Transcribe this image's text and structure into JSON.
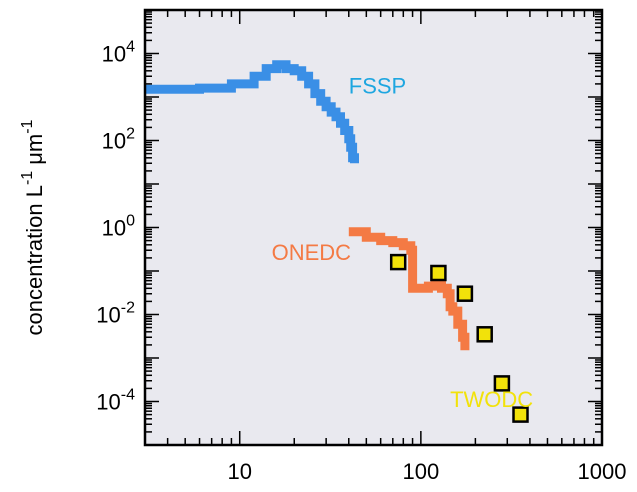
{
  "chart_data": {
    "type": "scatter",
    "title": "",
    "xlabel": "",
    "ylabel": "concentration L^-1 μm^-1",
    "ylabel_parts": {
      "main": "concentration L",
      "exp1": "-1",
      "mu": "μm",
      "exp2": "-1"
    },
    "x_scale": "log",
    "y_scale": "log",
    "xlim": [
      3,
      1000
    ],
    "ylim": [
      1e-05,
      100000
    ],
    "grid": false,
    "background": "#e9e9ef",
    "x_ticks": [
      {
        "value": 10,
        "label": "10"
      },
      {
        "value": 100,
        "label": "100"
      },
      {
        "value": 1000,
        "label": "1000"
      }
    ],
    "y_ticks": [
      {
        "value": 0.0001,
        "base": "10",
        "exp": "-4"
      },
      {
        "value": 0.01,
        "base": "10",
        "exp": "-2"
      },
      {
        "value": 1,
        "base": "10",
        "exp": "0"
      },
      {
        "value": 100,
        "base": "10",
        "exp": "2"
      },
      {
        "value": 10000,
        "base": "10",
        "exp": "4"
      }
    ],
    "series": [
      {
        "name": "FSSP",
        "color": "#3a8fe6",
        "style": "step-line",
        "points": [
          [
            3,
            1500
          ],
          [
            6,
            1600
          ],
          [
            9,
            2000
          ],
          [
            10,
            2000
          ],
          [
            12,
            3000
          ],
          [
            14,
            4500
          ],
          [
            16,
            5500
          ],
          [
            18,
            4500
          ],
          [
            20,
            4000
          ],
          [
            22,
            3000
          ],
          [
            24,
            2000
          ],
          [
            26,
            1200
          ],
          [
            28,
            800
          ],
          [
            30,
            600
          ],
          [
            32,
            450
          ],
          [
            34,
            350
          ],
          [
            36,
            250
          ],
          [
            38,
            170
          ],
          [
            40,
            110
          ],
          [
            41,
            70
          ],
          [
            42,
            40
          ],
          [
            43,
            30
          ]
        ]
      },
      {
        "name": "ONEDC",
        "color": "#f47a44",
        "style": "step-line",
        "points": [
          [
            40,
            0.8
          ],
          [
            50,
            0.6
          ],
          [
            60,
            0.5
          ],
          [
            70,
            0.45
          ],
          [
            80,
            0.38
          ],
          [
            88,
            0.3
          ],
          [
            90,
            0.04
          ],
          [
            100,
            0.04
          ],
          [
            110,
            0.045
          ],
          [
            120,
            0.05
          ],
          [
            130,
            0.04
          ],
          [
            140,
            0.03
          ],
          [
            145,
            0.015
          ],
          [
            150,
            0.012
          ],
          [
            160,
            0.006
          ],
          [
            170,
            0.003
          ],
          [
            175,
            0.0015
          ]
        ]
      },
      {
        "name": "TWODC",
        "color": "#f2e20a",
        "style": "markers",
        "points": [
          [
            75,
            0.16
          ],
          [
            125,
            0.09
          ],
          [
            175,
            0.03
          ],
          [
            225,
            0.0035
          ],
          [
            280,
            0.00026
          ],
          [
            355,
            5e-05
          ]
        ]
      }
    ],
    "annotations": [
      {
        "text": "FSSP",
        "color": "#1ea6e0",
        "x": 40,
        "y": 1200
      },
      {
        "text": "ONEDC",
        "color": "#f47a44",
        "x": 15,
        "y": 0.18
      },
      {
        "text": "TWODC",
        "color": "#f2e20a",
        "x": 145,
        "y": 7.5e-05
      }
    ]
  }
}
